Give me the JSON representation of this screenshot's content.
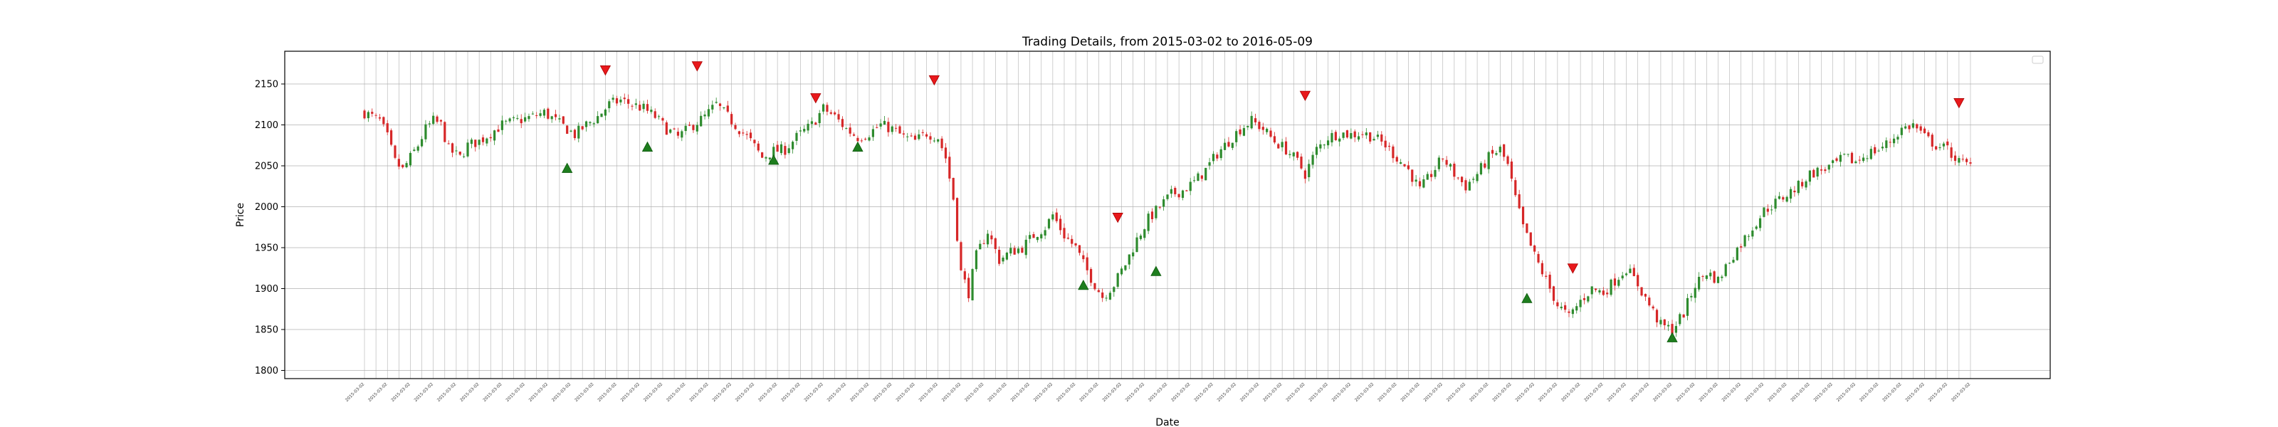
{
  "chart_data": {
    "type": "candlestick",
    "title": "Trading Details, from 2015-03-02 to 2016-05-09",
    "xlabel": "Date",
    "ylabel": "Price",
    "x_range": [
      "2015-03-02",
      "2016-05-09"
    ],
    "ylim": [
      1790,
      2190
    ],
    "y_ticks": [
      1800,
      1850,
      1900,
      1950,
      2000,
      2050,
      2100,
      2150
    ],
    "grid": true,
    "legend": "top-right (empty)",
    "colors": {
      "up": "#2e8b2e",
      "down": "#d62728",
      "buy_marker": "#1e7d1e",
      "sell_marker": "#e8191c",
      "grid": "#b0b0b0"
    },
    "price_path": [
      [
        0,
        2115
      ],
      [
        4,
        2105
      ],
      [
        6,
        2085
      ],
      [
        8,
        2055
      ],
      [
        10,
        2045
      ],
      [
        12,
        2060
      ],
      [
        14,
        2075
      ],
      [
        16,
        2095
      ],
      [
        18,
        2105
      ],
      [
        20,
        2100
      ],
      [
        22,
        2070
      ],
      [
        25,
        2060
      ],
      [
        27,
        2075
      ],
      [
        30,
        2080
      ],
      [
        33,
        2090
      ],
      [
        36,
        2100
      ],
      [
        40,
        2105
      ],
      [
        44,
        2110
      ],
      [
        47,
        2115
      ],
      [
        50,
        2105
      ],
      [
        53,
        2095
      ],
      [
        55,
        2088
      ],
      [
        58,
        2100
      ],
      [
        61,
        2110
      ],
      [
        64,
        2125
      ],
      [
        67,
        2130
      ],
      [
        70,
        2125
      ],
      [
        73,
        2120
      ],
      [
        76,
        2110
      ],
      [
        79,
        2095
      ],
      [
        82,
        2085
      ],
      [
        86,
        2100
      ],
      [
        89,
        2110
      ],
      [
        92,
        2125
      ],
      [
        95,
        2110
      ],
      [
        98,
        2095
      ],
      [
        101,
        2080
      ],
      [
        104,
        2060
      ],
      [
        107,
        2068
      ],
      [
        110,
        2070
      ],
      [
        113,
        2085
      ],
      [
        117,
        2100
      ],
      [
        120,
        2120
      ],
      [
        123,
        2110
      ],
      [
        126,
        2095
      ],
      [
        129,
        2085
      ],
      [
        132,
        2090
      ],
      [
        135,
        2100
      ],
      [
        138,
        2095
      ],
      [
        141,
        2085
      ],
      [
        144,
        2080
      ],
      [
        147,
        2090
      ],
      [
        150,
        2085
      ],
      [
        152,
        2060
      ],
      [
        154,
        2010
      ],
      [
        156,
        1920
      ],
      [
        158,
        1895
      ],
      [
        160,
        1940
      ],
      [
        163,
        1970
      ],
      [
        166,
        1935
      ],
      [
        169,
        1945
      ],
      [
        172,
        1950
      ],
      [
        175,
        1965
      ],
      [
        178,
        1975
      ],
      [
        180,
        1990
      ],
      [
        183,
        1965
      ],
      [
        186,
        1950
      ],
      [
        188,
        1930
      ],
      [
        191,
        1905
      ],
      [
        193,
        1890
      ],
      [
        196,
        1905
      ],
      [
        199,
        1930
      ],
      [
        202,
        1960
      ],
      [
        205,
        1985
      ],
      [
        208,
        2000
      ],
      [
        211,
        2015
      ],
      [
        214,
        2020
      ],
      [
        217,
        2030
      ],
      [
        220,
        2045
      ],
      [
        223,
        2065
      ],
      [
        226,
        2080
      ],
      [
        229,
        2095
      ],
      [
        232,
        2105
      ],
      [
        235,
        2095
      ],
      [
        238,
        2080
      ],
      [
        241,
        2070
      ],
      [
        244,
        2055
      ],
      [
        246,
        2040
      ],
      [
        249,
        2070
      ],
      [
        252,
        2085
      ],
      [
        255,
        2090
      ],
      [
        258,
        2088
      ],
      [
        261,
        2090
      ],
      [
        264,
        2085
      ],
      [
        267,
        2075
      ],
      [
        270,
        2060
      ],
      [
        273,
        2045
      ],
      [
        276,
        2020
      ],
      [
        279,
        2040
      ],
      [
        282,
        2060
      ],
      [
        285,
        2040
      ],
      [
        288,
        2025
      ],
      [
        291,
        2040
      ],
      [
        294,
        2060
      ],
      [
        297,
        2070
      ],
      [
        299,
        2050
      ],
      [
        301,
        2010
      ],
      [
        303,
        1975
      ],
      [
        306,
        1940
      ],
      [
        309,
        1910
      ],
      [
        312,
        1880
      ],
      [
        315,
        1865
      ],
      [
        318,
        1885
      ],
      [
        321,
        1900
      ],
      [
        324,
        1895
      ],
      [
        327,
        1910
      ],
      [
        330,
        1925
      ],
      [
        333,
        1905
      ],
      [
        336,
        1880
      ],
      [
        339,
        1855
      ],
      [
        342,
        1850
      ],
      [
        345,
        1870
      ],
      [
        348,
        1905
      ],
      [
        351,
        1920
      ],
      [
        354,
        1910
      ],
      [
        357,
        1935
      ],
      [
        360,
        1955
      ],
      [
        363,
        1975
      ],
      [
        366,
        1995
      ],
      [
        369,
        2005
      ],
      [
        372,
        2015
      ],
      [
        375,
        2025
      ],
      [
        378,
        2040
      ],
      [
        381,
        2045
      ],
      [
        384,
        2050
      ],
      [
        387,
        2060
      ],
      [
        390,
        2055
      ],
      [
        393,
        2065
      ],
      [
        396,
        2070
      ],
      [
        399,
        2080
      ],
      [
        402,
        2095
      ],
      [
        405,
        2100
      ],
      [
        408,
        2085
      ],
      [
        411,
        2075
      ],
      [
        414,
        2070
      ],
      [
        417,
        2055
      ],
      [
        420,
        2050
      ]
    ],
    "buy_signals": [
      {
        "i": 53,
        "y": 2047
      },
      {
        "i": 74,
        "y": 2073
      },
      {
        "i": 107,
        "y": 2057
      },
      {
        "i": 129,
        "y": 2073
      },
      {
        "i": 188,
        "y": 1904
      },
      {
        "i": 207,
        "y": 1921
      },
      {
        "i": 304,
        "y": 1888
      },
      {
        "i": 342,
        "y": 1840
      }
    ],
    "sell_signals": [
      {
        "i": 63,
        "y": 2167
      },
      {
        "i": 87,
        "y": 2172
      },
      {
        "i": 118,
        "y": 2133
      },
      {
        "i": 149,
        "y": 2155
      },
      {
        "i": 197,
        "y": 1987
      },
      {
        "i": 246,
        "y": 2136
      },
      {
        "i": 316,
        "y": 1925
      },
      {
        "i": 417,
        "y": 2127
      }
    ],
    "n_sessions": 420
  }
}
